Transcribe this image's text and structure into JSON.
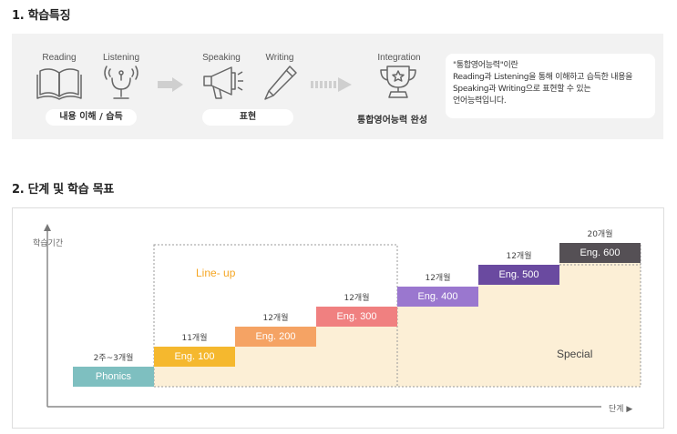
{
  "section1": {
    "heading": "1. 학습특징",
    "skills": {
      "reading": "Reading",
      "listening": "Listening",
      "speaking": "Speaking",
      "writing": "Writing",
      "integration": "Integration"
    },
    "pill_understand": "내용 이해 / 습득",
    "pill_express": "표현",
    "integrated_complete": "통합영어능력 완성",
    "description": [
      "\"통합영어능력\"이란",
      "Reading과 Listening을 통해 이해하고 습득한 내용을",
      "Speaking과 Writing으로 표현할 수 있는",
      "언어능력입니다."
    ]
  },
  "section2": {
    "heading": "2. 단계 및 학습 목표",
    "y_axis_label": "학습기간",
    "x_axis_label": "단계 ▶",
    "lineup_label": "Line- up",
    "special_label": "Special",
    "steps": [
      {
        "name": "Phonics",
        "duration": "2주~3개월",
        "color": "#7ebfc0"
      },
      {
        "name": "Eng. 100",
        "duration": "11개월",
        "color": "#f5b82e"
      },
      {
        "name": "Eng. 200",
        "duration": "12개월",
        "color": "#f5a364"
      },
      {
        "name": "Eng. 300",
        "duration": "12개월",
        "color": "#f08080"
      },
      {
        "name": "Eng. 400",
        "duration": "12개월",
        "color": "#9a77cf"
      },
      {
        "name": "Eng. 500",
        "duration": "12개월",
        "color": "#6a4aa0"
      },
      {
        "name": "Eng. 600",
        "duration": "20개월",
        "color": "#555055"
      }
    ]
  }
}
